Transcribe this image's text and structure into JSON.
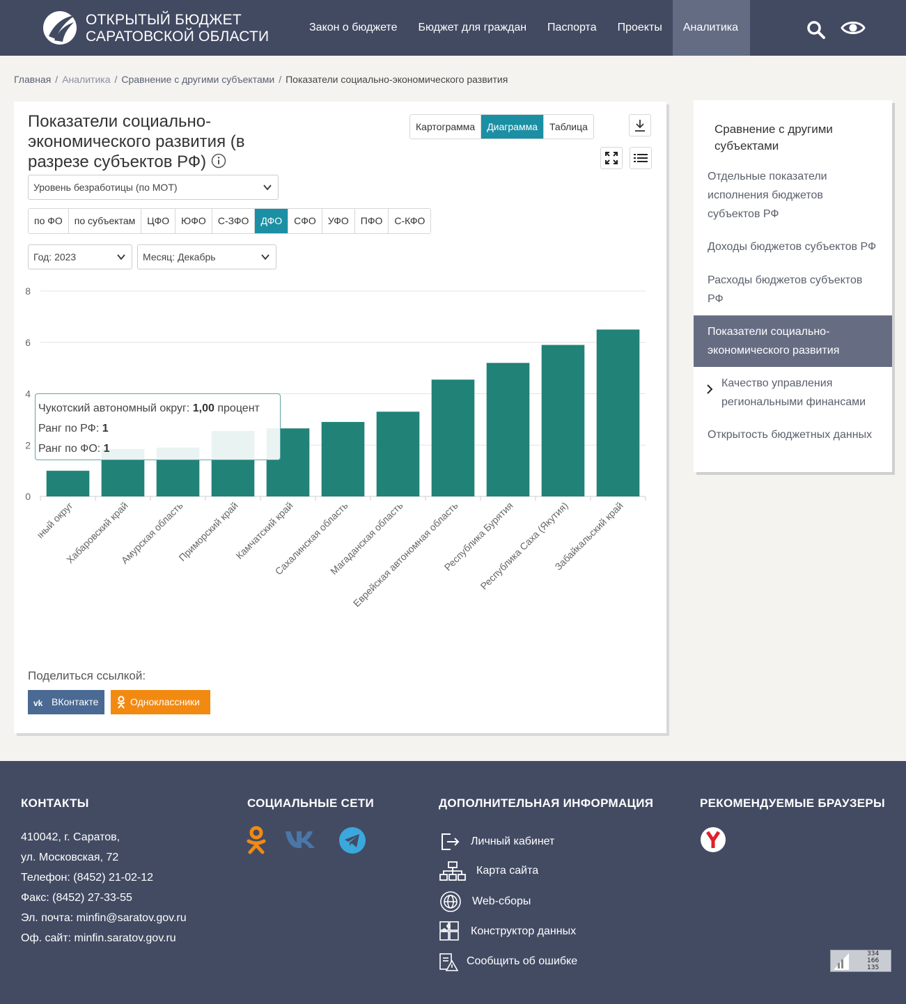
{
  "header": {
    "logo_line1": "ОТКРЫТЫЙ БЮДЖЕТ",
    "logo_line2": "САРАТОВСКОЙ ОБЛАСТИ",
    "nav": [
      "Закон о бюджете",
      "Бюджет для граждан",
      "Паспорта",
      "Проекты",
      "Аналитика"
    ],
    "active_nav": "Аналитика"
  },
  "breadcrumbs": {
    "home": "Главная",
    "analytics": "Аналитика",
    "compare": "Сравнение с другими субъектами",
    "current": "Показатели социально-экономического развития"
  },
  "main": {
    "title": "Показатели социально-экономического развития (в разрезе субъектов РФ)",
    "view_tabs": [
      "Картограмма",
      "Диаграмма",
      "Таблица"
    ],
    "active_view": "Диаграмма",
    "indicator_select": "Уровень безработицы (по МОТ)",
    "fo_tabs": [
      "по ФО",
      "по субъектам",
      "ЦФО",
      "ЮФО",
      "С-ЗФО",
      "ДФО",
      "СФО",
      "УФО",
      "ПФО",
      "С-КФО"
    ],
    "active_fo": "ДФО",
    "year_select": "Год: 2023",
    "month_select": "Месяц: Декабрь",
    "tooltip": {
      "region": "Чукотский автономный округ:",
      "value": "1,00",
      "unit": "процент",
      "rank_rf_label": "Ранг по РФ:",
      "rank_rf": "1",
      "rank_fo_label": "Ранг по ФО:",
      "rank_fo": "1"
    },
    "share_label": "Поделиться ссылкой:",
    "share_vk": "ВКонтакте",
    "share_ok": "Одноклассники"
  },
  "chart_data": {
    "type": "bar",
    "categories": [
      "Чукотский автономный округ",
      "Хабаровский край",
      "Амурская область",
      "Приморский край",
      "Камчатский край",
      "Сахалинская область",
      "Магаданская область",
      "Еврейская автономная область",
      "Республика Бурятия",
      "Республика Саха (Якутия)",
      "Забайкальский край"
    ],
    "values": [
      1.0,
      1.85,
      1.9,
      2.55,
      2.65,
      2.9,
      3.3,
      4.55,
      5.2,
      5.9,
      6.5
    ],
    "ylim": [
      0,
      8
    ],
    "yticks": [
      0,
      2,
      4,
      6,
      8
    ],
    "bar_color": "#218277",
    "grid": true
  },
  "sidebar": {
    "title": "Сравнение с другими субъектами",
    "items": [
      "Отдельные показатели исполнения бюджетов субъектов РФ",
      "Доходы бюджетов субъектов РФ",
      "Расходы бюджетов субъектов РФ",
      "Показатели социально-экономического развития",
      "Качество управления региональными финансами",
      "Открытость бюджетных данных"
    ],
    "active_index": 3
  },
  "footer": {
    "contacts_head": "КОНТАКТЫ",
    "contacts": [
      "410042, г. Саратов,",
      "ул. Московская, 72",
      "Телефон: (8452) 21-02-12",
      "Факс: (8452) 27-33-55",
      "Эл. почта: minfin@saratov.gov.ru",
      "Оф. сайт: minfin.saratov.gov.ru"
    ],
    "social_head": "СОЦИАЛЬНЫЕ СЕТИ",
    "info_head": "ДОПОЛНИТЕЛЬНАЯ ИНФОРМАЦИЯ",
    "info_links": [
      "Личный кабинет",
      "Карта сайта",
      "Web-сборы",
      "Конструктор данных",
      "Сообщить об ошибке"
    ],
    "browsers_head": "РЕКОМЕНДУЕМЫЕ БРАУЗЕРЫ",
    "counter": [
      "334",
      "166",
      "135"
    ]
  }
}
